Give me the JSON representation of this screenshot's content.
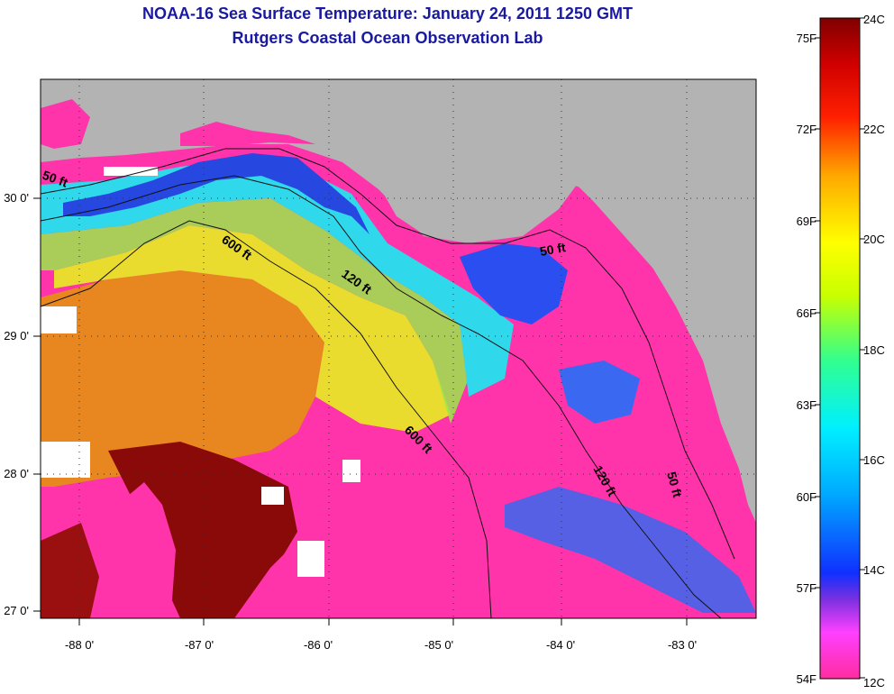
{
  "header": {
    "title": "NOAA-16 Sea Surface Temperature:  January 24, 2011 1250 GMT",
    "subtitle": "Rutgers Coastal Ocean Observation Lab"
  },
  "map": {
    "lon_ticks": [
      "-88 0'",
      "-87 0'",
      "-86 0'",
      "-85 0'",
      "-84 0'",
      "-83 0'"
    ],
    "lat_ticks": [
      "30 0'",
      "29 0'",
      "28 0'",
      "27 0'"
    ],
    "contours": [
      {
        "label": "50 ft"
      },
      {
        "label": "600 ft"
      },
      {
        "label": "120 ft"
      },
      {
        "label": "50 ft"
      },
      {
        "label": "600 ft"
      },
      {
        "label": "120 ft"
      },
      {
        "label": "50 ft"
      }
    ],
    "colors": {
      "land": "#b3b3b3",
      "cloud": "#ff33aa",
      "warm": "#e87a1a",
      "mid": "#e8e030",
      "cool": "#30d8e8",
      "cold": "#2040e0",
      "hot": "#8a0a0a"
    }
  },
  "colorbar": {
    "fahrenheit": [
      "75F",
      "72F",
      "69F",
      "66F",
      "63F",
      "60F",
      "57F",
      "54F"
    ],
    "celsius": [
      "24C",
      "22C",
      "20C",
      "18C",
      "16C",
      "14C",
      "12C"
    ],
    "range_c": [
      12,
      24
    ]
  }
}
